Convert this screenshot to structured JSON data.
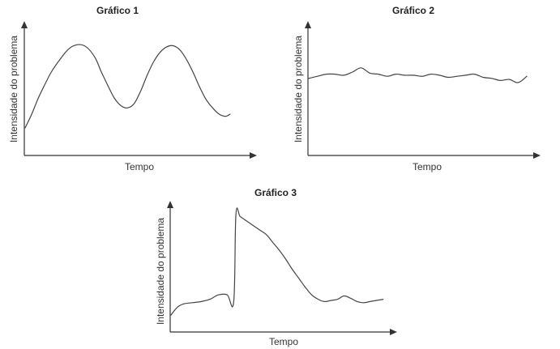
{
  "chart_data": [
    {
      "type": "line",
      "title": "Gráfico 1",
      "xlabel": "Tempo",
      "ylabel": "Intensidade do problema",
      "ylim": [
        0,
        100
      ],
      "xlim": [
        0,
        100
      ],
      "grid": false,
      "series": [
        {
          "x": [
            0,
            3,
            6,
            9,
            12,
            16,
            20,
            24,
            28,
            32,
            35,
            38,
            41,
            44,
            47,
            50,
            53,
            56,
            59,
            62,
            65,
            68,
            71,
            74,
            77,
            80,
            83,
            86,
            89,
            92,
            94
          ],
          "values": [
            17,
            30,
            45,
            58,
            70,
            82,
            92,
            96,
            94,
            84,
            70,
            57,
            45,
            38,
            36,
            40,
            52,
            67,
            80,
            89,
            94,
            95,
            91,
            82,
            70,
            56,
            44,
            36,
            30,
            28,
            30
          ]
        }
      ]
    },
    {
      "type": "line",
      "title": "Gráfico 2",
      "xlabel": "Tempo",
      "ylabel": "Intensidade do problema",
      "ylim": [
        0,
        100
      ],
      "xlim": [
        0,
        100
      ],
      "grid": false,
      "series": [
        {
          "x": [
            0,
            4,
            8,
            12,
            16,
            20,
            24,
            28,
            32,
            36,
            40,
            44,
            48,
            52,
            56,
            60,
            64,
            68,
            72,
            76,
            80,
            84,
            88,
            92,
            96,
            100
          ],
          "values": [
            64,
            66,
            68,
            68,
            67,
            70,
            74,
            69,
            68,
            66,
            68,
            67,
            67,
            66,
            68,
            67,
            65,
            66,
            67,
            68,
            65,
            64,
            62,
            63,
            60,
            66
          ]
        }
      ]
    },
    {
      "type": "line",
      "title": "Gráfico 3",
      "xlabel": "Tempo",
      "ylabel": "Intensidade do problema",
      "ylim": [
        0,
        100
      ],
      "xlim": [
        0,
        100
      ],
      "grid": false,
      "series": [
        {
          "x": [
            0,
            3,
            6,
            10,
            14,
            18,
            22,
            26,
            29,
            30,
            32,
            35,
            38,
            41,
            44,
            47,
            50,
            53,
            56,
            59,
            62,
            65,
            68,
            71,
            74,
            77,
            80,
            83,
            86,
            89,
            92,
            95,
            98
          ],
          "values": [
            8,
            15,
            18,
            19,
            20,
            22,
            26,
            26,
            20,
            98,
            96,
            92,
            88,
            84,
            80,
            73,
            66,
            58,
            49,
            41,
            33,
            26,
            22,
            20,
            21,
            22,
            25,
            23,
            20,
            19,
            20,
            21,
            22
          ]
        }
      ]
    }
  ]
}
